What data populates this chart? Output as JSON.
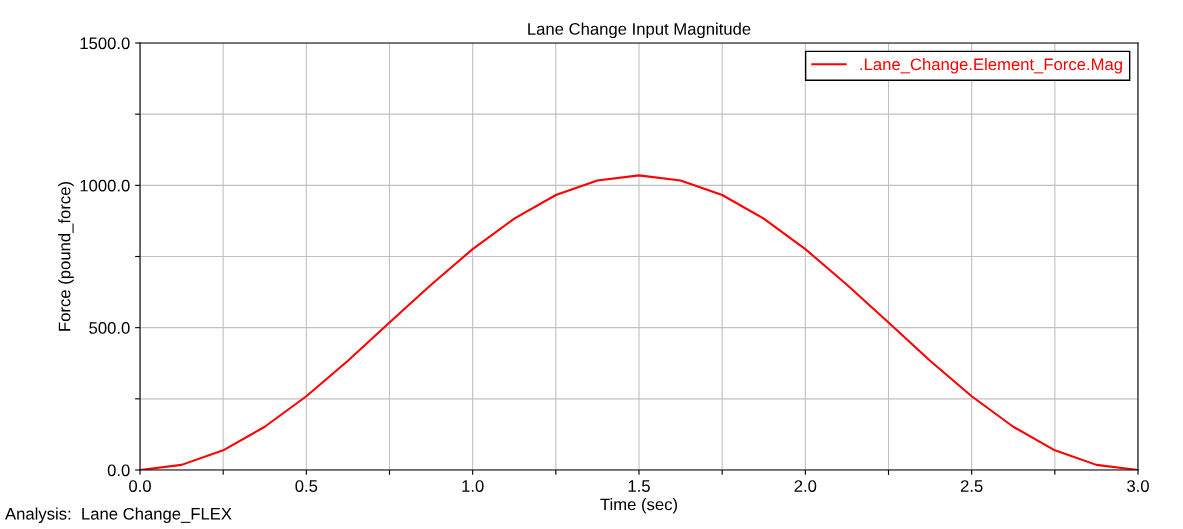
{
  "chart_data": {
    "type": "line",
    "title": "Lane Change Input Magnitude",
    "xlabel": "Time (sec)",
    "ylabel": "Force (pound_force)",
    "annotations": [
      "Analysis:  Lane Change_FLEX"
    ],
    "x": [
      0,
      0.125,
      0.25,
      0.375,
      0.5,
      0.625,
      0.75,
      0.875,
      1.0,
      1.125,
      1.25,
      1.375,
      1.5,
      1.625,
      1.75,
      1.875,
      2.0,
      2.125,
      2.25,
      2.375,
      2.5,
      2.625,
      2.75,
      2.875,
      3.0
    ],
    "series": [
      {
        "name": ".Lane_Change.Element_Force.Mag",
        "color": "#ff0000",
        "values": [
          0,
          18,
          69,
          152,
          259,
          384,
          518,
          651,
          776,
          883,
          966,
          1017,
          1035,
          1017,
          966,
          883,
          776,
          651,
          518,
          384,
          259,
          152,
          69,
          18,
          0
        ]
      }
    ],
    "xlim": [
      0,
      3.0
    ],
    "ylim": [
      0,
      1500
    ],
    "xticks": [
      {
        "value": 0,
        "label": "0.0"
      },
      {
        "value": 0.25,
        "label": null
      },
      {
        "value": 0.5,
        "label": "0.5"
      },
      {
        "value": 0.75,
        "label": null
      },
      {
        "value": 1.0,
        "label": "1.0"
      },
      {
        "value": 1.25,
        "label": null
      },
      {
        "value": 1.5,
        "label": "1.5"
      },
      {
        "value": 1.75,
        "label": null
      },
      {
        "value": 2.0,
        "label": "2.0"
      },
      {
        "value": 2.25,
        "label": null
      },
      {
        "value": 2.5,
        "label": "2.5"
      },
      {
        "value": 2.75,
        "label": null
      },
      {
        "value": 3.0,
        "label": "3.0"
      }
    ],
    "yticks": [
      {
        "value": 0,
        "label": "0.0"
      },
      {
        "value": 250,
        "label": null
      },
      {
        "value": 500,
        "label": "500.0"
      },
      {
        "value": 750,
        "label": null
      },
      {
        "value": 1000,
        "label": "1000.0"
      },
      {
        "value": 1250,
        "label": null
      },
      {
        "value": 1500,
        "label": "1500.0"
      }
    ],
    "grid": true,
    "legend": "top right",
    "marker": "none",
    "line_style": "solid"
  }
}
